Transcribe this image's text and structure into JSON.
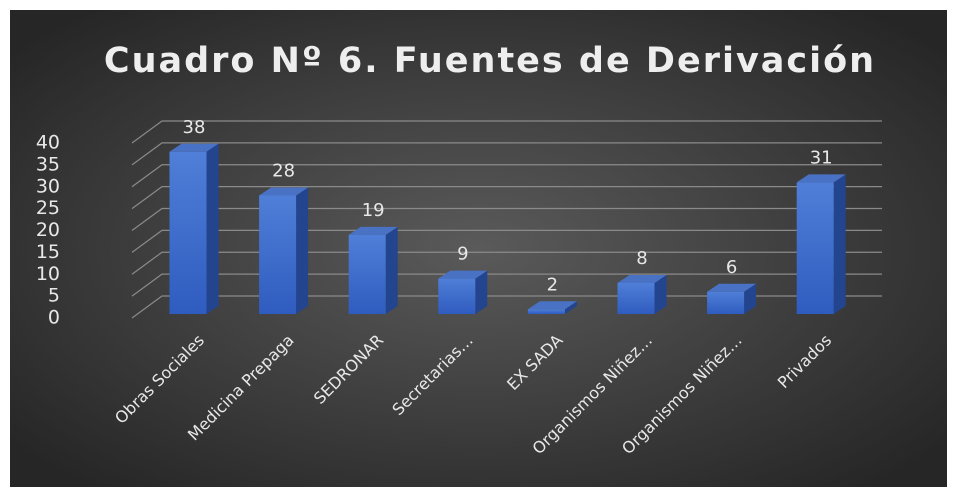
{
  "chart_data": {
    "type": "bar3d",
    "title": "Cuadro Nº 6. Fuentes de Derivación",
    "categories": [
      "Obras Sociales",
      "Medicina Prepaga",
      "SEDRONAR",
      "Secretarias…",
      "EX SADA",
      "Organismos Niñez…",
      "Organismos Niñez…",
      "Privados"
    ],
    "values": [
      38,
      28,
      19,
      9,
      2,
      8,
      6,
      31
    ],
    "color": "#3a66c8",
    "ylim": [
      0,
      40
    ],
    "yticks": [
      0,
      5,
      10,
      15,
      20,
      25,
      30,
      35,
      40
    ],
    "grid": true
  }
}
